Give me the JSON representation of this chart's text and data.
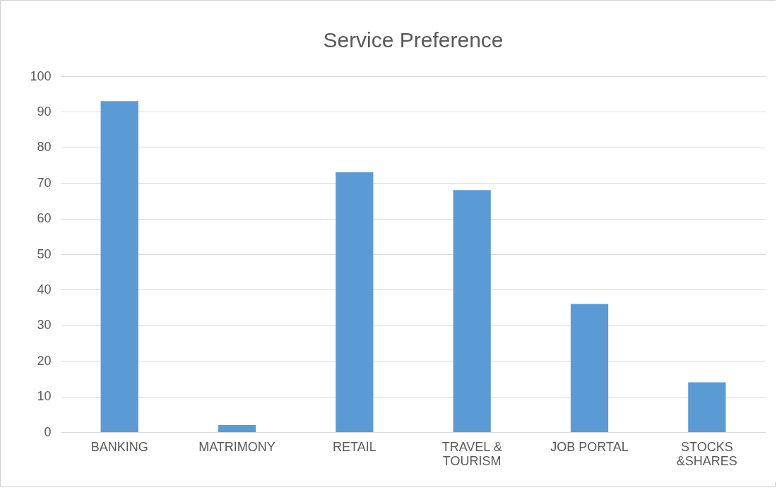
{
  "chart_data": {
    "type": "bar",
    "title": "Service Preference",
    "categories": [
      "BANKING",
      "MATRIMONY",
      "RETAIL",
      "TRAVEL & TOURISM",
      "JOB PORTAL",
      "STOCKS &SHARES"
    ],
    "values": [
      93,
      2,
      73,
      68,
      36,
      14
    ],
    "color": "#5b9bd5",
    "ylim": [
      0,
      100
    ],
    "yticks": [
      0,
      10,
      20,
      30,
      40,
      50,
      60,
      70,
      80,
      90,
      100
    ],
    "grid": "y"
  }
}
